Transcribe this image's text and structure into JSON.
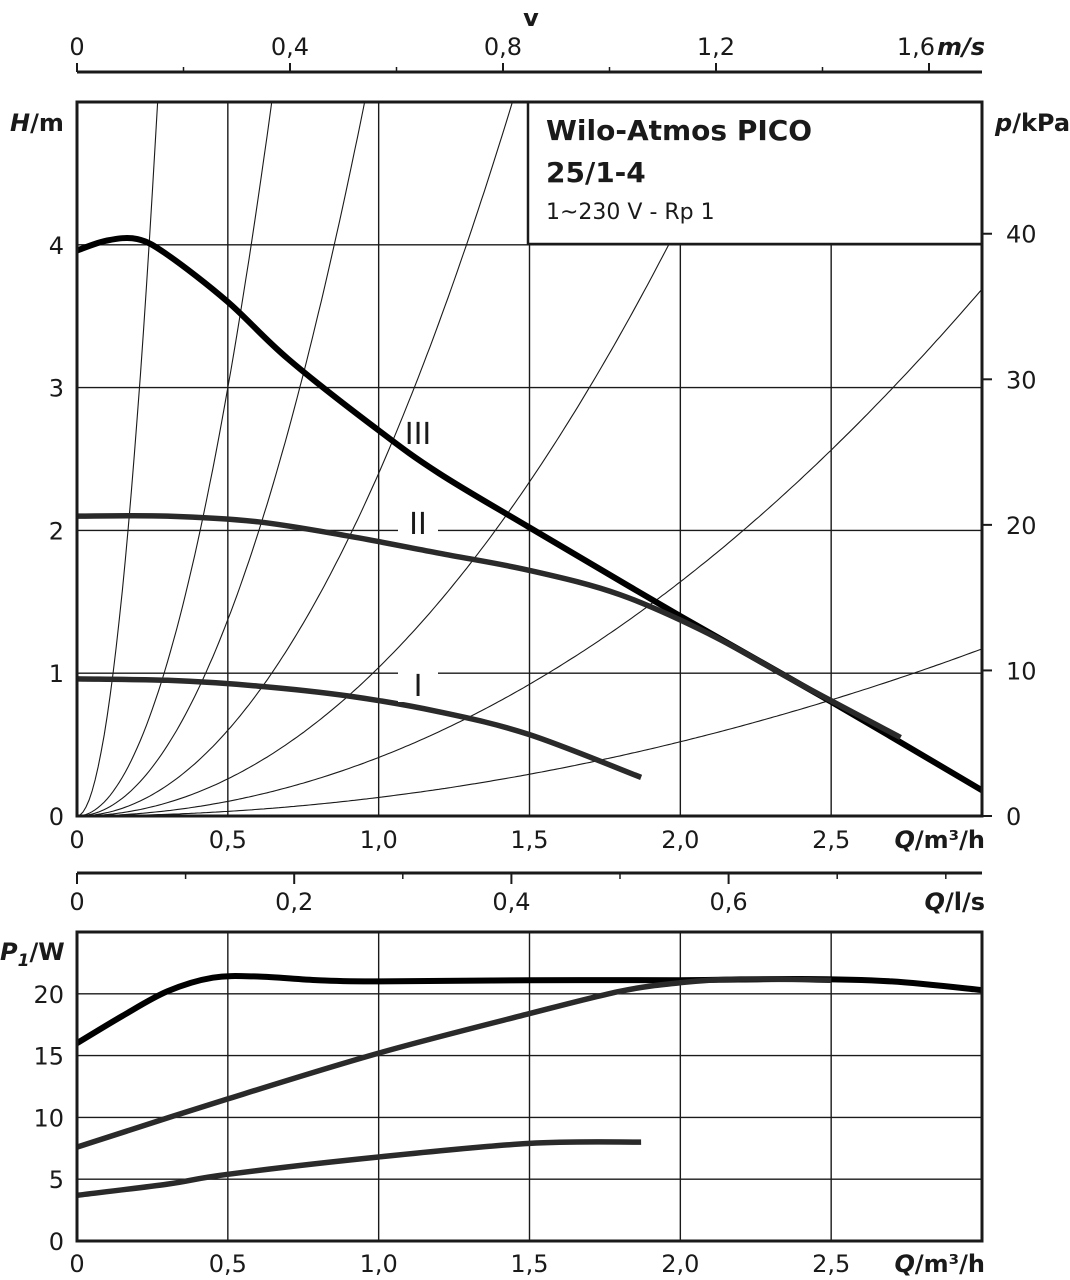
{
  "chart_data": [
    {
      "id": "head",
      "type": "line",
      "title": "Wilo-Atmos PICO",
      "model": "25/1-4",
      "subtitle": "1~230 V - Rp 1",
      "xlabel": "Q/m³/h",
      "ylabel": "H/m",
      "y2label": "p/kPa",
      "top_axis_label": "v",
      "top_axis_unit": "m/s",
      "xlim": [
        0,
        3.0
      ],
      "ylim": [
        0,
        5.0
      ],
      "x_ticks": [
        "0",
        "0,5",
        "1,0",
        "1,5",
        "2,0",
        "2,5"
      ],
      "y_ticks": [
        "0",
        "1",
        "2",
        "3",
        "4"
      ],
      "y2_ticks": [
        "0",
        "10",
        "20",
        "30",
        "40"
      ],
      "top_ticks": [
        "0",
        "0,4",
        "0,8",
        "1,2",
        "1,6"
      ],
      "series": [
        {
          "name": "III",
          "x": [
            0,
            0.1,
            0.2,
            0.3,
            0.5,
            0.7,
            1.0,
            1.2,
            1.5,
            2.0,
            2.5,
            3.0
          ],
          "values": [
            3.96,
            4.03,
            4.04,
            3.93,
            3.6,
            3.2,
            2.7,
            2.4,
            2.02,
            1.4,
            0.8,
            0.18
          ]
        },
        {
          "name": "II",
          "x": [
            0,
            0.3,
            0.6,
            0.9,
            1.2,
            1.5,
            1.8,
            2.1,
            2.4,
            2.73
          ],
          "values": [
            2.1,
            2.1,
            2.06,
            1.96,
            1.84,
            1.72,
            1.55,
            1.27,
            0.92,
            0.55
          ]
        },
        {
          "name": "I",
          "x": [
            0,
            0.3,
            0.6,
            0.9,
            1.2,
            1.5,
            1.87
          ],
          "values": [
            0.96,
            0.95,
            0.91,
            0.84,
            0.73,
            0.57,
            0.27
          ]
        }
      ],
      "system_curves_k": [
        70,
        12,
        5.5,
        2.4,
        1.04,
        0.41,
        0.13
      ],
      "curve_labels": [
        "III",
        "II",
        "I"
      ]
    },
    {
      "id": "flow_ls_axis",
      "type": "axis",
      "xlabel": "Q/l/s",
      "x_ticks": [
        "0",
        "0,2",
        "0,4",
        "0,6"
      ]
    },
    {
      "id": "power",
      "type": "line",
      "xlabel": "Q/m³/h",
      "ylabel": "P1/W",
      "xlim": [
        0,
        3.0
      ],
      "ylim": [
        0,
        25
      ],
      "x_ticks": [
        "0",
        "0,5",
        "1,0",
        "1,5",
        "2,0",
        "2,5"
      ],
      "y_ticks": [
        "0",
        "5",
        "10",
        "15",
        "20"
      ],
      "series": [
        {
          "name": "III",
          "x": [
            0,
            0.15,
            0.3,
            0.45,
            0.6,
            0.8,
            1.0,
            1.5,
            2.0,
            2.4,
            2.7,
            3.0
          ],
          "values": [
            16.0,
            18.2,
            20.2,
            21.3,
            21.4,
            21.1,
            21.0,
            21.1,
            21.1,
            21.2,
            21.0,
            20.3
          ]
        },
        {
          "name": "II",
          "x": [
            0,
            0.5,
            1.0,
            1.5,
            1.8,
            2.0,
            2.2,
            2.5
          ],
          "values": [
            7.6,
            11.5,
            15.2,
            18.4,
            20.2,
            20.9,
            21.2,
            21.1
          ]
        },
        {
          "name": "I",
          "x": [
            0,
            0.3,
            0.5,
            1.0,
            1.5,
            1.87
          ],
          "values": [
            3.7,
            4.6,
            5.4,
            6.8,
            7.9,
            8.0
          ]
        }
      ]
    }
  ],
  "labels": {
    "pressure_symbol": "p",
    "pressure_unit": "/kPa",
    "head_symbol": "H",
    "head_unit": "/m",
    "power_symbol": "P",
    "power_sub": "1",
    "power_unit": "/W",
    "q_symbol": "Q",
    "q_unit_m3h": "/m³/h",
    "q_unit_ls": "/l/s",
    "v_symbol": "v",
    "v_unit": "m/s"
  }
}
